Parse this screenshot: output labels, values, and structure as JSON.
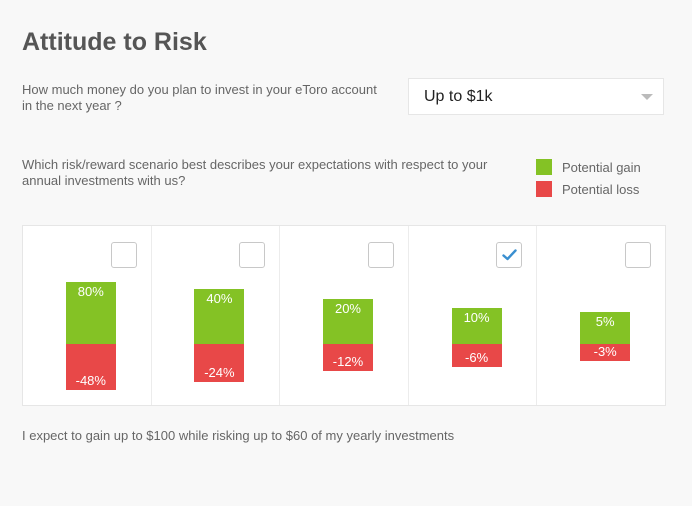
{
  "title": "Attitude to Risk",
  "investment_question": "How much money do you plan to invest in your eToro account in the next year ?",
  "investment_select": {
    "value": "Up to $1k"
  },
  "scenario_question": "Which risk/reward scenario best describes your expectations with respect to your annual investments with us?",
  "legend": {
    "gain_label": "Potential gain",
    "loss_label": "Potential loss",
    "gain_color": "#84c225",
    "loss_color": "#e84848"
  },
  "options": [
    {
      "gain": 80,
      "loss": 48,
      "gain_label": "80%",
      "loss_label": "-48%",
      "checked": false
    },
    {
      "gain": 40,
      "loss": 24,
      "gain_label": "40%",
      "loss_label": "-24%",
      "checked": false
    },
    {
      "gain": 20,
      "loss": 12,
      "gain_label": "20%",
      "loss_label": "-12%",
      "checked": false
    },
    {
      "gain": 10,
      "loss": 6,
      "gain_label": "10%",
      "loss_label": "-6%",
      "checked": true
    },
    {
      "gain": 5,
      "loss": 3,
      "gain_label": "5%",
      "loss_label": "-3%",
      "checked": false
    }
  ],
  "summary": "I expect to gain up to $100 while risking up to $60 of my yearly investments"
}
